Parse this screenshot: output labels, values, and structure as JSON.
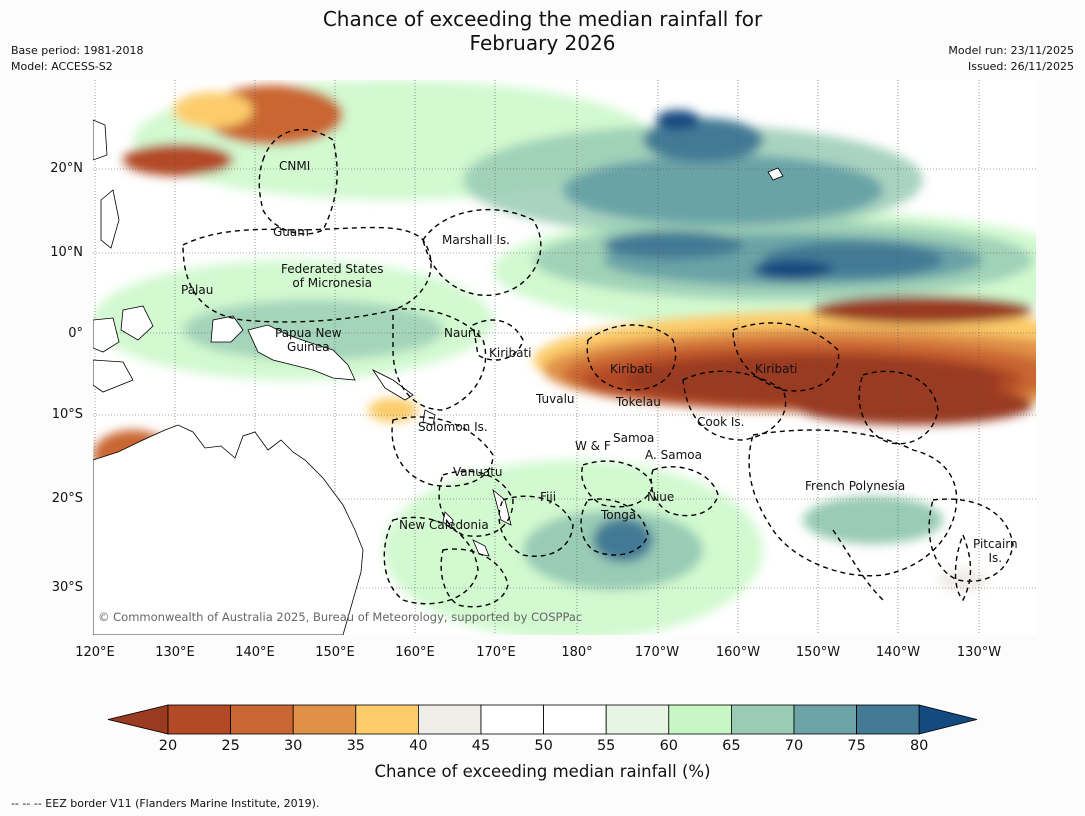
{
  "header": {
    "title_line1": "Chance of exceeding the median rainfall for",
    "title_line2": "February 2026",
    "base_period": "Base period: 1981-2018",
    "model": "Model: ACCESS-S2",
    "model_run": "Model run: 23/11/2025",
    "issued": "Issued: 26/11/2025"
  },
  "axes": {
    "lat_ticks": [
      "20°N",
      "10°N",
      "0°",
      "10°S",
      "20°S",
      "30°S"
    ],
    "lon_ticks": [
      "120°E",
      "130°E",
      "140°E",
      "150°E",
      "160°E",
      "170°E",
      "180°",
      "170°W",
      "160°W",
      "150°W",
      "140°W",
      "130°W"
    ]
  },
  "places": [
    {
      "text": "CNMI"
    },
    {
      "text": "Guam"
    },
    {
      "text": "Marshall Is."
    },
    {
      "text": "Federated States\nof Micronesia"
    },
    {
      "text": "Palau"
    },
    {
      "text": "Papua New\nGuinea"
    },
    {
      "text": "Nauru"
    },
    {
      "text": "Kiribati"
    },
    {
      "text": "Kiribati"
    },
    {
      "text": "Kiribati"
    },
    {
      "text": "Tuvalu"
    },
    {
      "text": "Tokelau"
    },
    {
      "text": "Cook Is."
    },
    {
      "text": "Solomon Is."
    },
    {
      "text": "Samoa"
    },
    {
      "text": "W & F"
    },
    {
      "text": "A. Samoa"
    },
    {
      "text": "Vanuatu"
    },
    {
      "text": "Fiji"
    },
    {
      "text": "Niue"
    },
    {
      "text": "French Polynesia"
    },
    {
      "text": "Tonga"
    },
    {
      "text": "New Caledonia"
    },
    {
      "text": "Pitcairn\nIs."
    }
  ],
  "copyright": "© Commonwealth of Australia 2025, Bureau of Meteorology, supported by COSPPac",
  "colorbar": {
    "title": "Chance of exceeding median rainfall (%)",
    "ticks": [
      "20",
      "25",
      "30",
      "35",
      "40",
      "45",
      "50",
      "55",
      "60",
      "65",
      "70",
      "75",
      "80"
    ],
    "colors": [
      "#993a21",
      "#b34a26",
      "#c96632",
      "#e09148",
      "#fccc6a",
      "#efede8",
      "#ffffff",
      "#ffffff",
      "#e7f5e5",
      "#c7f7c4",
      "#99cbb5",
      "#6ba3a7",
      "#437a95",
      "#134a80"
    ]
  },
  "footnote": "--  --  -- EEZ border V11 (Flanders Marine Institute, 2019)."
}
